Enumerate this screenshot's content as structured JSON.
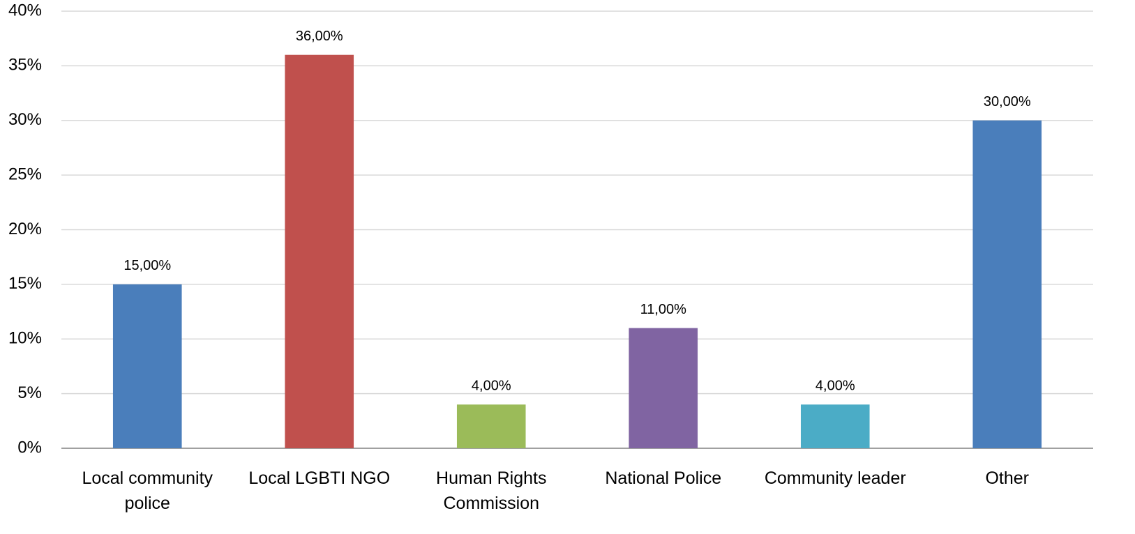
{
  "chart_data": {
    "type": "bar",
    "categories": [
      "Local community police",
      "Local LGBTI NGO",
      "Human Rights Commission",
      "National Police",
      "Community leader",
      "Other"
    ],
    "values": [
      15,
      36,
      4,
      11,
      4,
      30
    ],
    "value_labels": [
      "15,00%",
      "36,00%",
      "4,00%",
      "11,00%",
      "4,00%",
      "30,00%"
    ],
    "colors": [
      "#4a7ebb",
      "#c0504d",
      "#9bbb59",
      "#8064a2",
      "#4bacc6",
      "#4a7ebb"
    ],
    "ylim": [
      0,
      40
    ],
    "yticks": [
      {
        "value": 0,
        "label": "0%"
      },
      {
        "value": 5,
        "label": "5%"
      },
      {
        "value": 10,
        "label": "10%"
      },
      {
        "value": 15,
        "label": "15%"
      },
      {
        "value": 20,
        "label": "20%"
      },
      {
        "value": 25,
        "label": "25%"
      },
      {
        "value": 30,
        "label": "30%"
      },
      {
        "value": 35,
        "label": "35%"
      },
      {
        "value": 40,
        "label": "40%"
      }
    ],
    "grid": true
  }
}
